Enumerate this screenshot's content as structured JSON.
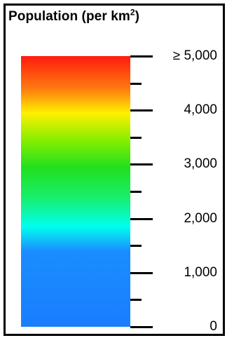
{
  "legend": {
    "title": "Population (per km",
    "title_sup": "2",
    "title_close": ")",
    "ramp_stops": [
      {
        "offset": 0.0,
        "color": "#ff1a0d"
      },
      {
        "offset": 0.12,
        "color": "#ff7a10"
      },
      {
        "offset": 0.21,
        "color": "#fff000"
      },
      {
        "offset": 0.31,
        "color": "#88ee00"
      },
      {
        "offset": 0.41,
        "color": "#22e01e"
      },
      {
        "offset": 0.52,
        "color": "#18ee6a"
      },
      {
        "offset": 0.63,
        "color": "#00ffee"
      },
      {
        "offset": 0.72,
        "color": "#1a8dff"
      },
      {
        "offset": 1.0,
        "color": "#1a7dff"
      }
    ],
    "scale": {
      "min": 0,
      "max": 5000,
      "major_step": 1000,
      "minor_step": 500
    },
    "labels": [
      "≥ 5,000",
      "4,000",
      "3,000",
      "2,000",
      "1,000",
      "0"
    ]
  }
}
